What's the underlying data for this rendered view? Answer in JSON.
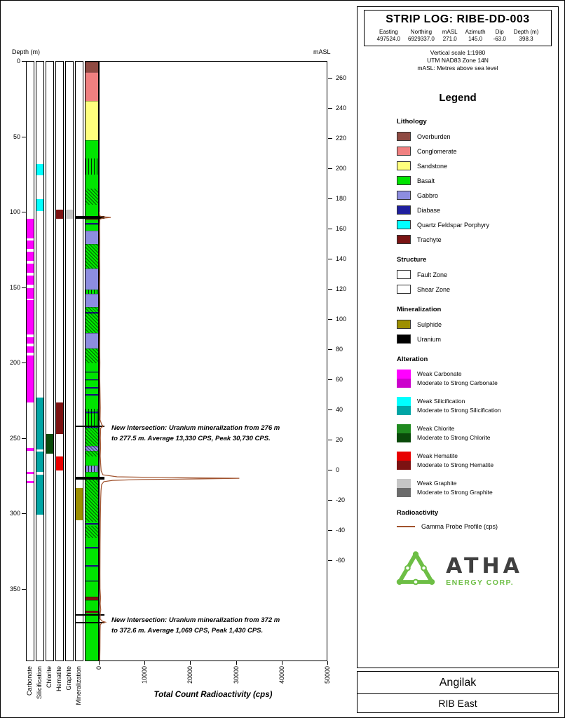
{
  "header": {
    "title": "STRIP LOG: RIBE-DD-003",
    "info": {
      "columns": [
        "Easting",
        "Northing",
        "mASL",
        "Azimuth",
        "Dip",
        "Depth (m)"
      ],
      "values": [
        "497524.0",
        "6929337.0",
        "271.0",
        "145.0",
        "-63.0",
        "398.3"
      ]
    },
    "notes": [
      "Vertical scale 1:1980",
      "UTM NAD83 Zone 14N",
      "mASL: Metres above sea level"
    ]
  },
  "legend": {
    "title": "Legend",
    "lithology": {
      "heading": "Lithology",
      "items": [
        {
          "label": "Overburden",
          "color": "#8F4A42"
        },
        {
          "label": "Conglomerate",
          "color": "#F08080"
        },
        {
          "label": "Sandstone",
          "color": "#FFFF7D"
        },
        {
          "label": "Basalt",
          "color": "#00E400"
        },
        {
          "label": "Gabbro",
          "color": "#8D8DE0"
        },
        {
          "label": "Diabase",
          "color": "#1F1F9E"
        },
        {
          "label": "Quartz Feldspar Porphyry",
          "color": "#00FFFF"
        },
        {
          "label": "Trachyte",
          "color": "#7A1414"
        }
      ]
    },
    "structure": {
      "heading": "Structure",
      "items": [
        {
          "label": "Fault Zone",
          "pattern": "fault"
        },
        {
          "label": "Shear Zone",
          "pattern": "shear"
        }
      ]
    },
    "mineralization": {
      "heading": "Mineralization",
      "items": [
        {
          "label": "Sulphide",
          "color": "#9D8F00"
        },
        {
          "label": "Uranium",
          "color": "#000000"
        }
      ]
    },
    "alteration": {
      "heading": "Alteration",
      "groups": [
        {
          "weak_label": "Weak Carbonate",
          "strong_label": "Moderate to Strong Carbonate",
          "weak_color": "#FF00FF",
          "strong_color": "#CC00CC"
        },
        {
          "weak_label": "Weak Silicification",
          "strong_label": "Moderate to Strong Silicification",
          "weak_color": "#00FFFF",
          "strong_color": "#00A5A5"
        },
        {
          "weak_label": "Weak Chlorite",
          "strong_label": "Moderate to Strong Chlorite",
          "weak_color": "#1F8A1F",
          "strong_color": "#0A4A0A"
        },
        {
          "weak_label": "Weak Hematite",
          "strong_label": "Moderate to Strong Hematite",
          "weak_color": "#E80000",
          "strong_color": "#7C1212"
        },
        {
          "weak_label": "Weak Graphite",
          "strong_label": "Moderate to Strong Graphite",
          "weak_color": "#C6C6C6",
          "strong_color": "#6B6B6B"
        }
      ]
    },
    "radioactivity": {
      "heading": "Radioactivity",
      "items": [
        {
          "label": "Gamma Probe Profile (cps)",
          "color": "#A0522D"
        }
      ]
    }
  },
  "logo": {
    "name": "ATHA",
    "sub": "ENERGY CORP.",
    "color": "#6DBE45"
  },
  "footer": {
    "project": "Angilak",
    "area": "RIB East"
  },
  "axes": {
    "depth_label": "Depth (m)",
    "masl_label": "mASL",
    "x_label": "Total Count Radioactivity (cps)",
    "depth_ticks": [
      0,
      50,
      100,
      150,
      200,
      250,
      300,
      350
    ],
    "masl_ticks": [
      260,
      240,
      220,
      200,
      180,
      160,
      140,
      120,
      100,
      80,
      60,
      40,
      20,
      0,
      -20,
      -40,
      -60
    ],
    "x_ticks": [
      0,
      10000,
      20000,
      30000,
      40000,
      50000
    ],
    "x_max": 50000,
    "collar_masl": 271.0,
    "depth_max": 398.3,
    "column_labels": [
      "Carbonate",
      "Silicification",
      "Chlorite",
      "Hematite",
      "Graphite",
      "Mineralization"
    ]
  },
  "chart_data": {
    "type": "strip-log",
    "hole": {
      "name": "RIBE-DD-003",
      "depth_max_m": 398.3,
      "collar_masl": 271.0
    },
    "lithology_intervals": [
      {
        "from": 0,
        "to": 7,
        "unit": "Overburden"
      },
      {
        "from": 7,
        "to": 26,
        "unit": "Conglomerate"
      },
      {
        "from": 26,
        "to": 52,
        "unit": "Sandstone"
      },
      {
        "from": 52,
        "to": 102.5,
        "unit": "Basalt"
      },
      {
        "from": 102.5,
        "to": 104.5,
        "unit": "Trachyte"
      },
      {
        "from": 104.5,
        "to": 107,
        "unit": "Basalt"
      },
      {
        "from": 107,
        "to": 107.8,
        "unit": "Diabase"
      },
      {
        "from": 107.8,
        "to": 112,
        "unit": "Basalt"
      },
      {
        "from": 112,
        "to": 121,
        "unit": "Gabbro"
      },
      {
        "from": 121,
        "to": 137,
        "unit": "Basalt"
      },
      {
        "from": 137,
        "to": 151,
        "unit": "Gabbro"
      },
      {
        "from": 151,
        "to": 154,
        "unit": "Basalt"
      },
      {
        "from": 154,
        "to": 163,
        "unit": "Gabbro"
      },
      {
        "from": 163,
        "to": 166,
        "unit": "Basalt"
      },
      {
        "from": 166,
        "to": 167,
        "unit": "Diabase"
      },
      {
        "from": 167,
        "to": 180,
        "unit": "Basalt"
      },
      {
        "from": 180,
        "to": 190,
        "unit": "Gabbro"
      },
      {
        "from": 190,
        "to": 205.5,
        "unit": "Basalt"
      },
      {
        "from": 205.5,
        "to": 206.2,
        "unit": "Diabase"
      },
      {
        "from": 206.2,
        "to": 210.5,
        "unit": "Basalt"
      },
      {
        "from": 210.5,
        "to": 211.2,
        "unit": "Diabase"
      },
      {
        "from": 211.2,
        "to": 216,
        "unit": "Basalt"
      },
      {
        "from": 216,
        "to": 216.7,
        "unit": "Diabase"
      },
      {
        "from": 216.7,
        "to": 220.5,
        "unit": "Basalt"
      },
      {
        "from": 220.5,
        "to": 221.2,
        "unit": "Diabase"
      },
      {
        "from": 221.2,
        "to": 232,
        "unit": "Basalt"
      },
      {
        "from": 232,
        "to": 233,
        "unit": "Diabase"
      },
      {
        "from": 233,
        "to": 242,
        "unit": "Basalt"
      },
      {
        "from": 242,
        "to": 243,
        "unit": "Diabase"
      },
      {
        "from": 243,
        "to": 255,
        "unit": "Basalt"
      },
      {
        "from": 255,
        "to": 258,
        "unit": "Gabbro"
      },
      {
        "from": 258,
        "to": 268,
        "unit": "Basalt"
      },
      {
        "from": 268,
        "to": 272,
        "unit": "Gabbro"
      },
      {
        "from": 272,
        "to": 306,
        "unit": "Basalt"
      },
      {
        "from": 306,
        "to": 307,
        "unit": "Diabase"
      },
      {
        "from": 307,
        "to": 322,
        "unit": "Basalt"
      },
      {
        "from": 322,
        "to": 322.7,
        "unit": "Diabase"
      },
      {
        "from": 322.7,
        "to": 334,
        "unit": "Basalt"
      },
      {
        "from": 334,
        "to": 334.7,
        "unit": "Diabase"
      },
      {
        "from": 334.7,
        "to": 344,
        "unit": "Basalt"
      },
      {
        "from": 344,
        "to": 344.7,
        "unit": "Diabase"
      },
      {
        "from": 344.7,
        "to": 355,
        "unit": "Basalt"
      },
      {
        "from": 355,
        "to": 357,
        "unit": "Trachyte"
      },
      {
        "from": 357,
        "to": 364,
        "unit": "Basalt"
      },
      {
        "from": 364,
        "to": 365.5,
        "unit": "Trachyte"
      },
      {
        "from": 365.5,
        "to": 398.3,
        "unit": "Basalt"
      }
    ],
    "structure_intervals": [
      {
        "from": 64,
        "to": 75,
        "type": "fault"
      },
      {
        "from": 84,
        "to": 95,
        "type": "shear"
      },
      {
        "from": 121,
        "to": 137,
        "type": "shear"
      },
      {
        "from": 151,
        "to": 154,
        "type": "fault"
      },
      {
        "from": 163,
        "to": 180,
        "type": "shear"
      },
      {
        "from": 190,
        "to": 200,
        "type": "shear"
      },
      {
        "from": 230,
        "to": 243,
        "type": "fault"
      },
      {
        "from": 243,
        "to": 262,
        "type": "shear"
      },
      {
        "from": 268,
        "to": 272,
        "type": "fault"
      },
      {
        "from": 276,
        "to": 305,
        "type": "shear"
      },
      {
        "from": 308,
        "to": 316,
        "type": "shear"
      }
    ],
    "alteration": {
      "carbonate": [
        {
          "from": 104,
          "to": 117,
          "intensity": "weak"
        },
        {
          "from": 118.5,
          "to": 124,
          "intensity": "weak"
        },
        {
          "from": 126,
          "to": 132,
          "intensity": "weak"
        },
        {
          "from": 134,
          "to": 140,
          "intensity": "weak"
        },
        {
          "from": 142,
          "to": 148,
          "intensity": "weak"
        },
        {
          "from": 150,
          "to": 157,
          "intensity": "weak"
        },
        {
          "from": 158,
          "to": 181,
          "intensity": "weak"
        },
        {
          "from": 183,
          "to": 187,
          "intensity": "weak"
        },
        {
          "from": 189,
          "to": 193,
          "intensity": "weak"
        },
        {
          "from": 195,
          "to": 226,
          "intensity": "weak"
        },
        {
          "from": 256.5,
          "to": 258,
          "intensity": "weak"
        },
        {
          "from": 272,
          "to": 273.5,
          "intensity": "weak"
        },
        {
          "from": 278,
          "to": 279.5,
          "intensity": "weak"
        }
      ],
      "silicification": [
        {
          "from": 68,
          "to": 75.5,
          "intensity": "weak"
        },
        {
          "from": 91,
          "to": 99,
          "intensity": "weak"
        },
        {
          "from": 223,
          "to": 257,
          "intensity": "strong"
        },
        {
          "from": 258.5,
          "to": 272,
          "intensity": "strong"
        },
        {
          "from": 274,
          "to": 300.5,
          "intensity": "strong"
        }
      ],
      "chlorite": [
        {
          "from": 247,
          "to": 260,
          "intensity": "strong"
        }
      ],
      "hematite": [
        {
          "from": 98,
          "to": 104,
          "intensity": "strong"
        },
        {
          "from": 226,
          "to": 247,
          "intensity": "strong"
        },
        {
          "from": 262,
          "to": 271,
          "intensity": "weak"
        }
      ],
      "graphite": [
        {
          "from": 98,
          "to": 104,
          "intensity": "weak"
        }
      ]
    },
    "mineralization_intervals": [
      {
        "from": 103,
        "to": 104.5,
        "type": "Uranium"
      },
      {
        "from": 242,
        "to": 243,
        "type": "Uranium"
      },
      {
        "from": 276,
        "to": 277.5,
        "type": "Uranium"
      },
      {
        "from": 283,
        "to": 304,
        "type": "Sulphide"
      },
      {
        "from": 367,
        "to": 368,
        "type": "Uranium"
      },
      {
        "from": 372,
        "to": 372.6,
        "type": "Uranium"
      }
    ],
    "gamma_profile": {
      "units": "cps",
      "x_range": [
        0,
        50000
      ],
      "points": [
        [
          100,
          100
        ],
        [
          102.5,
          150
        ],
        [
          103.2,
          500
        ],
        [
          103.8,
          2600
        ],
        [
          104.3,
          800
        ],
        [
          105,
          200
        ],
        [
          110,
          150
        ],
        [
          120,
          180
        ],
        [
          130,
          160
        ],
        [
          140,
          200
        ],
        [
          150,
          170
        ],
        [
          160,
          210
        ],
        [
          170,
          180
        ],
        [
          180,
          220
        ],
        [
          190,
          190
        ],
        [
          200,
          230
        ],
        [
          210,
          200
        ],
        [
          220,
          260
        ],
        [
          230,
          320
        ],
        [
          238,
          280
        ],
        [
          241,
          600
        ],
        [
          242.3,
          950
        ],
        [
          243.5,
          400
        ],
        [
          250,
          330
        ],
        [
          256,
          380
        ],
        [
          262,
          300
        ],
        [
          268,
          420
        ],
        [
          272,
          500
        ],
        [
          274.5,
          900
        ],
        [
          275.8,
          4000
        ],
        [
          276.4,
          16000
        ],
        [
          276.8,
          30730
        ],
        [
          277.2,
          22000
        ],
        [
          277.6,
          9500
        ],
        [
          278.2,
          3000
        ],
        [
          279,
          1100
        ],
        [
          281,
          600
        ],
        [
          285,
          480
        ],
        [
          290,
          420
        ],
        [
          295,
          380
        ],
        [
          300,
          360
        ],
        [
          306,
          320
        ],
        [
          312,
          300
        ],
        [
          320,
          270
        ],
        [
          330,
          260
        ],
        [
          340,
          250
        ],
        [
          350,
          255
        ],
        [
          356,
          380
        ],
        [
          360,
          300
        ],
        [
          364,
          420
        ],
        [
          366,
          320
        ],
        [
          370,
          280
        ],
        [
          371.6,
          700
        ],
        [
          372.2,
          1430
        ],
        [
          372.8,
          650
        ],
        [
          374,
          320
        ],
        [
          378,
          280
        ],
        [
          384,
          260
        ],
        [
          390,
          240
        ],
        [
          395,
          220
        ],
        [
          398,
          200
        ]
      ]
    },
    "annotations": [
      {
        "label_depth": 240,
        "text_lines": [
          "New Intersection: Uranium mineralization from 276 m",
          "to 277.5 m. Average 13,330 CPS, Peak 30,730 CPS."
        ]
      },
      {
        "label_depth": 367.4,
        "text_lines": [
          "New Intersection: Uranium mineralization from 372 m",
          "to 372.6 m. Average 1,069 CPS, Peak 1,430 CPS."
        ]
      }
    ]
  }
}
